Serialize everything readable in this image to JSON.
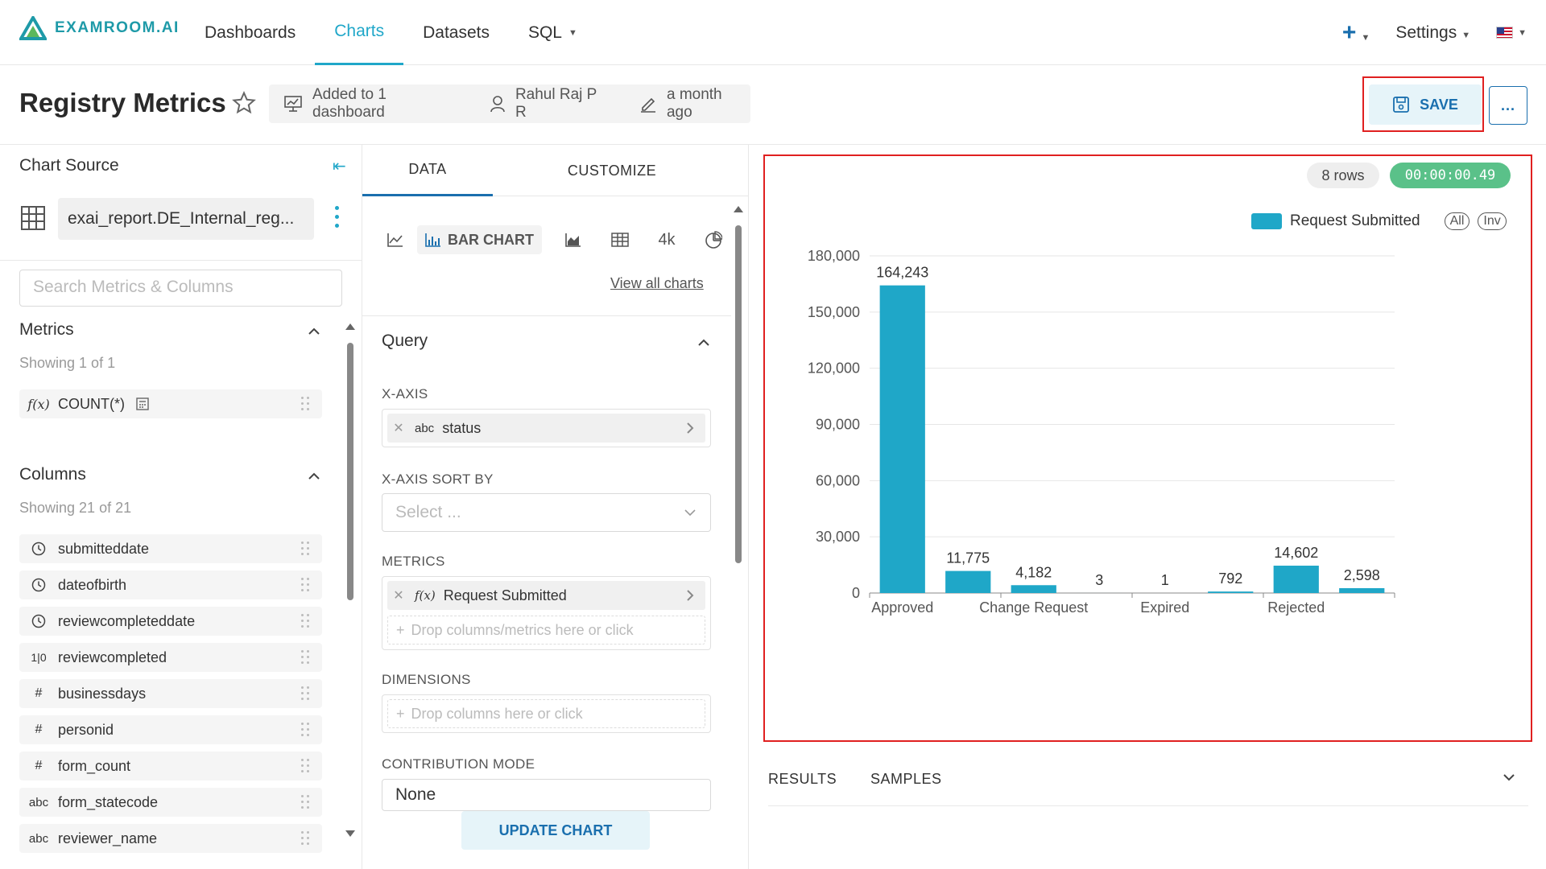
{
  "brand": {
    "name": "EXAMROOM.AI",
    "accent": "#20a7c9"
  },
  "nav": {
    "items": [
      {
        "label": "Dashboards"
      },
      {
        "label": "Charts",
        "active": true
      },
      {
        "label": "Datasets"
      },
      {
        "label": "SQL"
      }
    ],
    "settings_label": "Settings"
  },
  "header": {
    "title": "Registry Metrics",
    "dashboard_info": "Added to 1 dashboard",
    "owner": "Rahul Raj P R",
    "modified": "a month ago",
    "save_label": "SAVE",
    "more_label": "..."
  },
  "left": {
    "chart_source_label": "Chart Source",
    "dataset_name": "exai_report.DE_Internal_reg...",
    "search_placeholder": "Search Metrics & Columns",
    "metrics_title": "Metrics",
    "metrics_showing": "Showing 1 of 1",
    "metrics": [
      {
        "icon": "f(x)",
        "label": "COUNT(*)"
      }
    ],
    "columns_title": "Columns",
    "columns_showing": "Showing 21 of 21",
    "columns": [
      {
        "type": "clock",
        "label": "submitteddate"
      },
      {
        "type": "clock",
        "label": "dateofbirth"
      },
      {
        "type": "clock",
        "label": "reviewcompleteddate"
      },
      {
        "type": "bool",
        "label": "reviewcompleted"
      },
      {
        "type": "#",
        "label": "businessdays"
      },
      {
        "type": "#",
        "label": "personid"
      },
      {
        "type": "#",
        "label": "form_count"
      },
      {
        "type": "abc",
        "label": "form_statecode"
      },
      {
        "type": "abc",
        "label": "reviewer_name"
      }
    ]
  },
  "middle": {
    "tab_data": "DATA",
    "tab_customize": "CUSTOMIZE",
    "viz_selected": "BAR CHART",
    "viz_bignum": "4k",
    "view_all_charts": "View all charts",
    "query_title": "Query",
    "x_axis_label": "X-AXIS",
    "x_axis_value": "status",
    "x_axis_type": "abc",
    "x_sort_label": "X-AXIS SORT BY",
    "x_sort_placeholder": "Select ...",
    "metrics_label": "METRICS",
    "metric_value": "Request Submitted",
    "metric_drop": "Drop columns/metrics here or click",
    "dimensions_label": "DIMENSIONS",
    "dimension_drop": "Drop columns here or click",
    "contribution_label": "CONTRIBUTION MODE",
    "contribution_value": "None",
    "update_label": "UPDATE CHART"
  },
  "right": {
    "rows_badge": "8 rows",
    "time_badge": "00:00:00.49",
    "legend_all": "All",
    "legend_inv": "Inv",
    "tab_results": "RESULTS",
    "tab_samples": "SAMPLES"
  },
  "chart_data": {
    "type": "bar",
    "categories": [
      "Approved",
      "",
      "Change Request",
      "",
      "Expired",
      "",
      "Rejected",
      ""
    ],
    "series": [
      {
        "name": "Request Submitted",
        "color": "#1fa7c8",
        "values": [
          164243,
          11775,
          4182,
          3,
          1,
          792,
          14602,
          2598
        ]
      }
    ],
    "data_labels": [
      "164,243",
      "11,775",
      "4,182",
      "3",
      "1",
      "792",
      "14,602",
      "2,598"
    ],
    "yticks": [
      "0",
      "30,000",
      "60,000",
      "90,000",
      "120,000",
      "150,000",
      "180,000"
    ],
    "ylim": [
      0,
      180000
    ],
    "grid": true,
    "legend_position": "top-right"
  }
}
